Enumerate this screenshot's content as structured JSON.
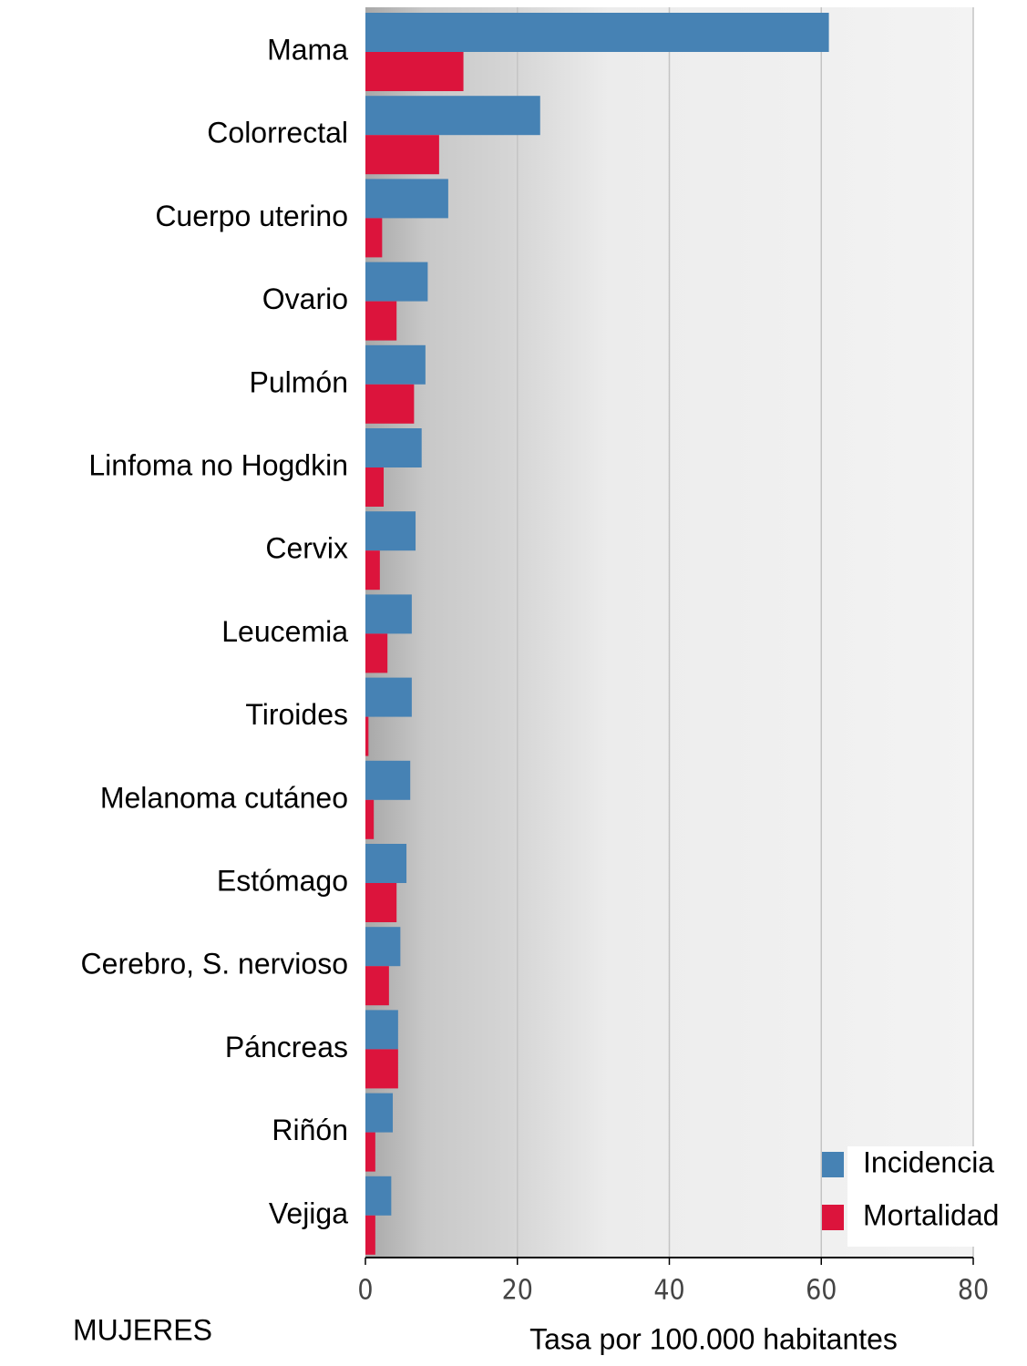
{
  "chart_data": {
    "type": "barh",
    "xlabel": "Tasa por 100.000 habitantes",
    "note": "MUJERES",
    "categories": [
      "Mama",
      "Colorrectal",
      "Cuerpo uterino",
      "Ovario",
      "Pulmón",
      "Linfoma no Hogdkin",
      "Cervix",
      "Leucemia",
      "Tiroides",
      "Melanoma cutáneo",
      "Estómago",
      "Cerebro, S. nervioso",
      "Páncreas",
      "Riñón",
      "Vejiga"
    ],
    "series": [
      {
        "name": "Incidencia",
        "color": "#4682b4",
        "values": [
          61.0,
          23.0,
          10.9,
          8.2,
          7.9,
          7.4,
          6.6,
          6.1,
          6.1,
          5.9,
          5.4,
          4.6,
          4.3,
          3.6,
          3.4
        ]
      },
      {
        "name": "Mortalidad",
        "color": "#dc143c",
        "values": [
          12.9,
          9.7,
          2.2,
          4.1,
          6.4,
          2.4,
          1.9,
          2.9,
          0.4,
          1.1,
          4.1,
          3.1,
          4.3,
          1.3,
          1.3
        ]
      }
    ],
    "xlim": [
      0,
      80
    ],
    "xticks": [
      0,
      20,
      40,
      60,
      80
    ],
    "grid": true,
    "legend": "lower right"
  }
}
